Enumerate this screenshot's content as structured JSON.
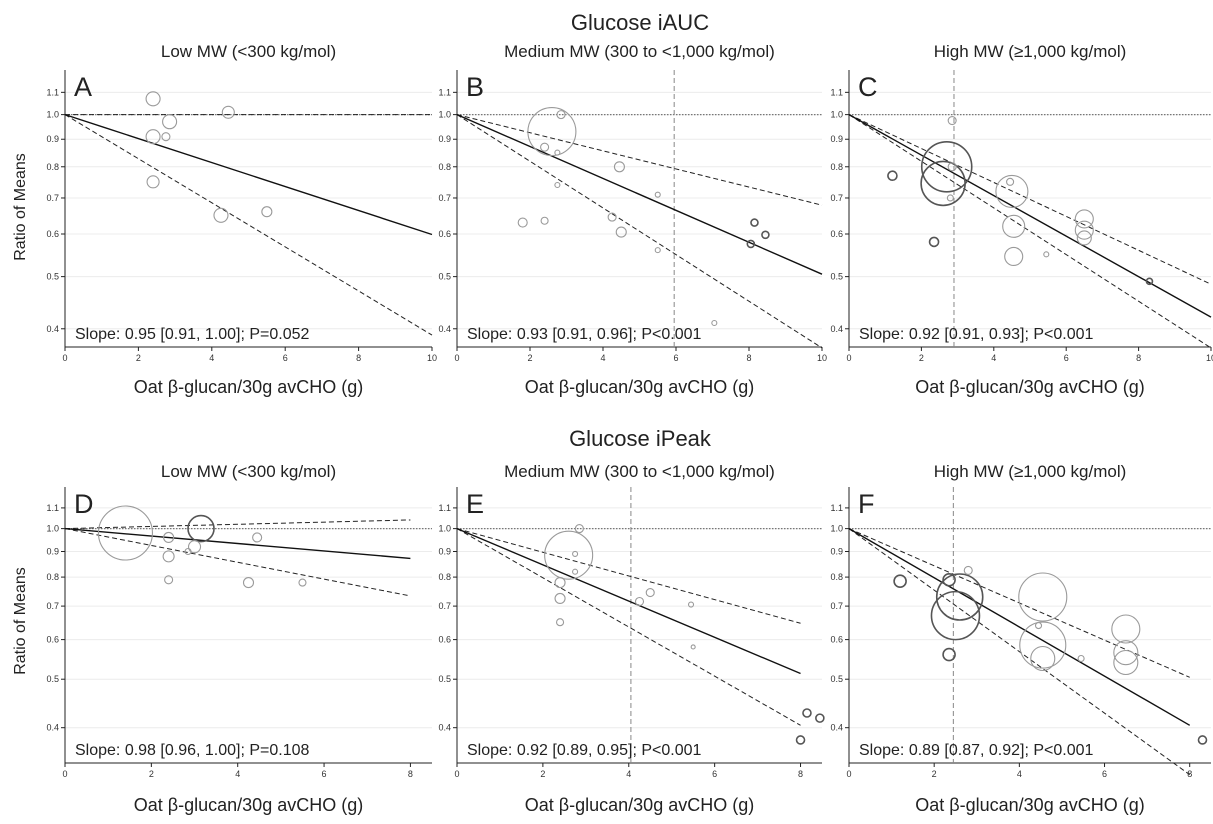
{
  "figure": {
    "row_titles": [
      "Glucose iAUC",
      "Glucose iPeak"
    ],
    "y_axis_label": "Ratio of Means",
    "x_axis_label": "Oat β-glucan/30g avCHO (g)"
  },
  "chart_data": [
    {
      "type": "scatter",
      "panel": "A",
      "row": 0,
      "col": 0,
      "title": "Low MW (<300 kg/mol)",
      "slope_text": "Slope: 0.95 [0.91, 1.00]; P=0.052",
      "xlabel": "Oat β-glucan/30g avCHO (g)",
      "ylabel": "Ratio of Means",
      "y_scale": "log",
      "xlim": [
        0,
        10
      ],
      "ylim": [
        0.37,
        1.2
      ],
      "xticks": [
        0,
        2,
        4,
        6,
        8,
        10
      ],
      "yticks": [
        0.4,
        0.5,
        0.6,
        0.7,
        0.8,
        0.9,
        1.0,
        1.1
      ],
      "fit": {
        "x_end": 10,
        "slope": 0.95,
        "ci_low": 0.91,
        "ci_high": 1.0
      },
      "reference_y": 1.0,
      "vline_x": null,
      "grid": "horizontal",
      "points": [
        {
          "x": 2.4,
          "y": 1.07,
          "size": 7,
          "dark": false
        },
        {
          "x": 2.85,
          "y": 0.97,
          "size": 7,
          "dark": false
        },
        {
          "x": 2.4,
          "y": 0.91,
          "size": 7,
          "dark": false
        },
        {
          "x": 2.75,
          "y": 0.91,
          "size": 4,
          "dark": false
        },
        {
          "x": 4.45,
          "y": 1.01,
          "size": 6,
          "dark": false
        },
        {
          "x": 2.4,
          "y": 0.75,
          "size": 6,
          "dark": false
        },
        {
          "x": 4.25,
          "y": 0.65,
          "size": 7,
          "dark": false
        },
        {
          "x": 5.5,
          "y": 0.66,
          "size": 5,
          "dark": false
        }
      ]
    },
    {
      "type": "scatter",
      "panel": "B",
      "row": 0,
      "col": 1,
      "title": "Medium MW (300 to <1,000 kg/mol)",
      "slope_text": "Slope: 0.93 [0.91, 0.96]; P<0.001",
      "xlabel": "Oat β-glucan/30g avCHO (g)",
      "ylabel": "Ratio of Means",
      "y_scale": "log",
      "xlim": [
        0,
        10
      ],
      "ylim": [
        0.37,
        1.2
      ],
      "xticks": [
        0,
        2,
        4,
        6,
        8,
        10
      ],
      "yticks": [
        0.4,
        0.5,
        0.6,
        0.7,
        0.8,
        0.9,
        1.0,
        1.1
      ],
      "fit": {
        "x_end": 10,
        "slope": 0.934,
        "ci_low": 0.905,
        "ci_high": 0.962
      },
      "reference_y": 1.0,
      "vline_x": 5.95,
      "grid": "horizontal",
      "points": [
        {
          "x": 2.6,
          "y": 0.93,
          "size": 24,
          "dark": false
        },
        {
          "x": 2.4,
          "y": 0.87,
          "size": 4,
          "dark": false
        },
        {
          "x": 2.85,
          "y": 1.0,
          "size": 4,
          "dark": false
        },
        {
          "x": 2.75,
          "y": 0.85,
          "size": 2.5,
          "dark": false
        },
        {
          "x": 4.45,
          "y": 0.8,
          "size": 5,
          "dark": false
        },
        {
          "x": 2.75,
          "y": 0.74,
          "size": 2.5,
          "dark": false
        },
        {
          "x": 5.5,
          "y": 0.71,
          "size": 2.5,
          "dark": false
        },
        {
          "x": 1.8,
          "y": 0.63,
          "size": 4.5,
          "dark": false
        },
        {
          "x": 2.4,
          "y": 0.635,
          "size": 3.5,
          "dark": false
        },
        {
          "x": 4.25,
          "y": 0.645,
          "size": 4,
          "dark": false
        },
        {
          "x": 4.5,
          "y": 0.605,
          "size": 5,
          "dark": false
        },
        {
          "x": 5.5,
          "y": 0.56,
          "size": 2.5,
          "dark": false
        },
        {
          "x": 7.05,
          "y": 0.41,
          "size": 2.5,
          "dark": false
        },
        {
          "x": 8.15,
          "y": 0.63,
          "size": 3.5,
          "dark": true
        },
        {
          "x": 8.45,
          "y": 0.598,
          "size": 3.5,
          "dark": true
        },
        {
          "x": 8.05,
          "y": 0.575,
          "size": 3.5,
          "dark": true
        }
      ]
    },
    {
      "type": "scatter",
      "panel": "C",
      "row": 0,
      "col": 2,
      "title": "High MW (≥1,000 kg/mol)",
      "slope_text": "Slope: 0.92 [0.91, 0.93]; P<0.001",
      "xlabel": "Oat β-glucan/30g avCHO (g)",
      "ylabel": "Ratio of Means",
      "y_scale": "log",
      "xlim": [
        0,
        10
      ],
      "ylim": [
        0.37,
        1.2
      ],
      "xticks": [
        0,
        2,
        4,
        6,
        8,
        10
      ],
      "yticks": [
        0.4,
        0.5,
        0.6,
        0.7,
        0.8,
        0.9,
        1.0,
        1.1
      ],
      "fit": {
        "x_end": 10,
        "slope": 0.917,
        "ci_low": 0.905,
        "ci_high": 0.93
      },
      "reference_y": 1.0,
      "vline_x": 2.9,
      "grid": "horizontal",
      "points": [
        {
          "x": 2.7,
          "y": 0.8,
          "size": 25,
          "dark": true
        },
        {
          "x": 2.6,
          "y": 0.745,
          "size": 22,
          "dark": true
        },
        {
          "x": 2.85,
          "y": 0.975,
          "size": 4,
          "dark": false
        },
        {
          "x": 2.85,
          "y": 0.8,
          "size": 4,
          "dark": false
        },
        {
          "x": 2.8,
          "y": 0.7,
          "size": 3,
          "dark": false
        },
        {
          "x": 1.2,
          "y": 0.77,
          "size": 4.5,
          "dark": true
        },
        {
          "x": 2.35,
          "y": 0.58,
          "size": 4.5,
          "dark": true
        },
        {
          "x": 4.5,
          "y": 0.72,
          "size": 16,
          "dark": false
        },
        {
          "x": 4.45,
          "y": 0.75,
          "size": 3.5,
          "dark": false
        },
        {
          "x": 4.55,
          "y": 0.62,
          "size": 11,
          "dark": false
        },
        {
          "x": 4.55,
          "y": 0.545,
          "size": 9,
          "dark": false
        },
        {
          "x": 5.45,
          "y": 0.55,
          "size": 2.5,
          "dark": false
        },
        {
          "x": 6.5,
          "y": 0.64,
          "size": 9,
          "dark": false
        },
        {
          "x": 6.5,
          "y": 0.61,
          "size": 9,
          "dark": false
        },
        {
          "x": 6.5,
          "y": 0.59,
          "size": 7,
          "dark": false
        },
        {
          "x": 8.3,
          "y": 0.49,
          "size": 3,
          "dark": true
        }
      ]
    },
    {
      "type": "scatter",
      "panel": "D",
      "row": 1,
      "col": 0,
      "title": "Low MW (<300 kg/mol)",
      "slope_text": "Slope: 0.98 [0.96, 1.00]; P=0.108",
      "xlabel": "Oat β-glucan/30g avCHO (g)",
      "ylabel": "Ratio of Means",
      "y_scale": "log",
      "xlim": [
        0,
        8.5
      ],
      "ylim": [
        0.34,
        1.2
      ],
      "xticks": [
        0,
        2,
        4,
        6,
        8
      ],
      "yticks": [
        0.4,
        0.5,
        0.6,
        0.7,
        0.8,
        0.9,
        1.0,
        1.1
      ],
      "fit": {
        "x_end": 8,
        "slope": 0.983,
        "ci_low": 0.962,
        "ci_high": 1.005
      },
      "reference_y": 1.0,
      "vline_x": null,
      "grid": "horizontal",
      "points": [
        {
          "x": 1.4,
          "y": 0.98,
          "size": 27,
          "dark": false
        },
        {
          "x": 3.15,
          "y": 1.0,
          "size": 13,
          "dark": true
        },
        {
          "x": 2.4,
          "y": 0.96,
          "size": 5,
          "dark": false
        },
        {
          "x": 2.85,
          "y": 0.9,
          "size": 3,
          "dark": false
        },
        {
          "x": 2.4,
          "y": 0.88,
          "size": 5.5,
          "dark": false
        },
        {
          "x": 3.0,
          "y": 0.92,
          "size": 6,
          "dark": false
        },
        {
          "x": 4.45,
          "y": 0.96,
          "size": 4.5,
          "dark": false
        },
        {
          "x": 2.4,
          "y": 0.79,
          "size": 4,
          "dark": false
        },
        {
          "x": 4.25,
          "y": 0.78,
          "size": 5,
          "dark": false
        },
        {
          "x": 5.5,
          "y": 0.78,
          "size": 3.5,
          "dark": false
        }
      ]
    },
    {
      "type": "scatter",
      "panel": "E",
      "row": 1,
      "col": 1,
      "title": "Medium MW (300 to <1,000 kg/mol)",
      "slope_text": "Slope: 0.92 [0.89, 0.95]; P<0.001",
      "xlabel": "Oat β-glucan/30g avCHO (g)",
      "ylabel": "Ratio of Means",
      "y_scale": "log",
      "xlim": [
        0,
        8.5
      ],
      "ylim": [
        0.34,
        1.2
      ],
      "xticks": [
        0,
        2,
        4,
        6,
        8
      ],
      "yticks": [
        0.4,
        0.5,
        0.6,
        0.7,
        0.8,
        0.9,
        1.0,
        1.1
      ],
      "fit": {
        "x_end": 8,
        "slope": 0.92,
        "ci_low": 0.893,
        "ci_high": 0.947
      },
      "reference_y": 1.0,
      "vline_x": 4.05,
      "grid": "horizontal",
      "points": [
        {
          "x": 2.6,
          "y": 0.885,
          "size": 24,
          "dark": false
        },
        {
          "x": 2.85,
          "y": 1.0,
          "size": 4,
          "dark": false
        },
        {
          "x": 2.75,
          "y": 0.89,
          "size": 2.5,
          "dark": false
        },
        {
          "x": 2.75,
          "y": 0.82,
          "size": 2.5,
          "dark": false
        },
        {
          "x": 2.4,
          "y": 0.78,
          "size": 5,
          "dark": false
        },
        {
          "x": 2.4,
          "y": 0.725,
          "size": 5,
          "dark": false
        },
        {
          "x": 2.4,
          "y": 0.65,
          "size": 3.5,
          "dark": false
        },
        {
          "x": 4.25,
          "y": 0.715,
          "size": 4,
          "dark": false
        },
        {
          "x": 4.5,
          "y": 0.745,
          "size": 4,
          "dark": false
        },
        {
          "x": 5.45,
          "y": 0.705,
          "size": 2.5,
          "dark": false
        },
        {
          "x": 5.5,
          "y": 0.58,
          "size": 2,
          "dark": false
        },
        {
          "x": 8.15,
          "y": 0.428,
          "size": 4,
          "dark": true
        },
        {
          "x": 8.45,
          "y": 0.418,
          "size": 4,
          "dark": true
        },
        {
          "x": 8.0,
          "y": 0.378,
          "size": 4,
          "dark": true
        }
      ]
    },
    {
      "type": "scatter",
      "panel": "F",
      "row": 1,
      "col": 2,
      "title": "High MW (≥1,000 kg/mol)",
      "slope_text": "Slope: 0.89 [0.87, 0.92]; P<0.001",
      "xlabel": "Oat β-glucan/30g avCHO (g)",
      "ylabel": "Ratio of Means",
      "y_scale": "log",
      "xlim": [
        0,
        8.5
      ],
      "ylim": [
        0.34,
        1.2
      ],
      "xticks": [
        0,
        2,
        4,
        6,
        8
      ],
      "yticks": [
        0.4,
        0.5,
        0.6,
        0.7,
        0.8,
        0.9,
        1.0,
        1.1
      ],
      "fit": {
        "x_end": 8,
        "slope": 0.893,
        "ci_low": 0.868,
        "ci_high": 0.918
      },
      "reference_y": 1.0,
      "vline_x": 2.45,
      "grid": "horizontal",
      "points": [
        {
          "x": 2.6,
          "y": 0.73,
          "size": 23,
          "dark": true
        },
        {
          "x": 2.5,
          "y": 0.67,
          "size": 24,
          "dark": true
        },
        {
          "x": 2.35,
          "y": 0.79,
          "size": 6,
          "dark": true
        },
        {
          "x": 2.8,
          "y": 0.825,
          "size": 4,
          "dark": false
        },
        {
          "x": 1.2,
          "y": 0.785,
          "size": 6,
          "dark": true
        },
        {
          "x": 2.35,
          "y": 0.56,
          "size": 6,
          "dark": true
        },
        {
          "x": 4.55,
          "y": 0.73,
          "size": 24,
          "dark": false
        },
        {
          "x": 4.45,
          "y": 0.64,
          "size": 3,
          "dark": false
        },
        {
          "x": 4.55,
          "y": 0.585,
          "size": 23,
          "dark": false
        },
        {
          "x": 4.55,
          "y": 0.55,
          "size": 12,
          "dark": false
        },
        {
          "x": 5.45,
          "y": 0.55,
          "size": 3,
          "dark": false
        },
        {
          "x": 6.5,
          "y": 0.63,
          "size": 14,
          "dark": false
        },
        {
          "x": 6.5,
          "y": 0.565,
          "size": 12,
          "dark": false
        },
        {
          "x": 6.5,
          "y": 0.54,
          "size": 12,
          "dark": false
        },
        {
          "x": 8.3,
          "y": 0.378,
          "size": 4,
          "dark": true
        }
      ]
    }
  ]
}
